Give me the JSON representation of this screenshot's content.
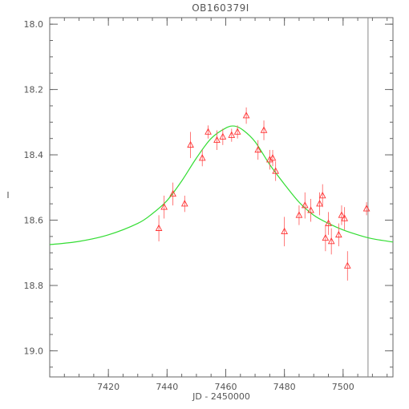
{
  "chart_data": {
    "type": "scatter",
    "title": "OB160379I",
    "xlabel": "JD - 2450000",
    "ylabel": "I",
    "xlim": [
      7400,
      7517
    ],
    "ylim": [
      19.08,
      17.98
    ],
    "y_inverted": true,
    "grid": false,
    "xticks": [
      7420,
      7440,
      7460,
      7480,
      7500
    ],
    "yticks": [
      18.0,
      18.2,
      18.4,
      18.6,
      18.8,
      19.0
    ],
    "ytick_labels": [
      "18.0",
      "18.2",
      "18.4",
      "18.6",
      "18.8",
      "19.0"
    ],
    "vertical_line_x": 7508.5,
    "model_curve": {
      "color": "#33dd33",
      "x": [
        7400,
        7410,
        7420,
        7430,
        7435,
        7440,
        7445,
        7450,
        7455,
        7460,
        7463,
        7466,
        7470,
        7475,
        7480,
        7485,
        7490,
        7495,
        7500,
        7505,
        7510,
        7517
      ],
      "y": [
        18.675,
        18.665,
        18.645,
        18.61,
        18.58,
        18.54,
        18.48,
        18.41,
        18.35,
        18.318,
        18.312,
        18.325,
        18.36,
        18.43,
        18.49,
        18.545,
        18.585,
        18.61,
        18.63,
        18.645,
        18.657,
        18.667
      ]
    },
    "series": [
      {
        "marker": "triangle",
        "color": "#ff3333",
        "x": [
          7437.2,
          7439,
          7442,
          7446,
          7448,
          7452,
          7454,
          7457,
          7459,
          7462,
          7464,
          7467,
          7471,
          7473,
          7475,
          7476,
          7477,
          7480,
          7485,
          7487,
          7489,
          7492,
          7493,
          7494,
          7495,
          7496,
          7498.5,
          7499.5,
          7500.5,
          7501.5,
          7508
        ],
        "y": [
          18.625,
          18.56,
          18.52,
          18.55,
          18.37,
          18.41,
          18.33,
          18.355,
          18.345,
          18.34,
          18.33,
          18.28,
          18.385,
          18.325,
          18.415,
          18.41,
          18.45,
          18.635,
          18.585,
          18.555,
          18.57,
          18.55,
          18.525,
          18.655,
          18.61,
          18.665,
          18.645,
          18.585,
          18.595,
          18.74,
          18.565
        ],
        "yerr": [
          0.04,
          0.035,
          0.035,
          0.025,
          0.04,
          0.025,
          0.02,
          0.03,
          0.025,
          0.02,
          0.02,
          0.025,
          0.03,
          0.03,
          0.03,
          0.025,
          0.03,
          0.045,
          0.03,
          0.04,
          0.035,
          0.035,
          0.035,
          0.04,
          0.035,
          0.04,
          0.035,
          0.03,
          0.035,
          0.045,
          0.02
        ]
      }
    ]
  }
}
